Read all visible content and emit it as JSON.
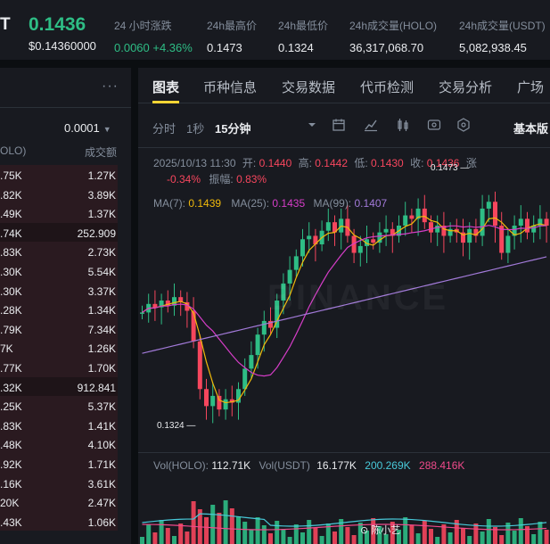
{
  "ticker": {
    "symbol": "T",
    "price": "0.1436",
    "price_usd": "$0.14360000",
    "stats": [
      {
        "label": "24 小时涨跌",
        "value": "0.0060 +4.36%",
        "green": true
      },
      {
        "label": "24h最高价",
        "value": "0.1473",
        "green": false
      },
      {
        "label": "24h最低价",
        "value": "0.1324",
        "green": false
      },
      {
        "label": "24h成交量(HOLO)",
        "value": "36,317,068.70",
        "green": false
      },
      {
        "label": "24h成交量(USDT)",
        "value": "5,082,938.45",
        "green": false
      }
    ]
  },
  "book": {
    "more": "···",
    "precision": "0.0001",
    "header_left": "OLO)",
    "header_right": "成交额",
    "rows": [
      {
        "a": ".75K",
        "b": "1.27K"
      },
      {
        "a": ".82K",
        "b": "3.89K"
      },
      {
        "a": ".49K",
        "b": "1.37K"
      },
      {
        "a": ".74K",
        "b": "252.909"
      },
      {
        "a": ".83K",
        "b": "2.73K"
      },
      {
        "a": ".30K",
        "b": "5.54K"
      },
      {
        "a": ".30K",
        "b": "3.37K"
      },
      {
        "a": ".28K",
        "b": "1.34K"
      },
      {
        "a": ".79K",
        "b": "7.34K"
      },
      {
        "a": "7K",
        "b": "1.26K"
      },
      {
        "a": ".77K",
        "b": "1.70K"
      },
      {
        "a": ".32K",
        "b": "912.841"
      },
      {
        "a": ".25K",
        "b": "5.37K"
      },
      {
        "a": ".83K",
        "b": "1.41K"
      },
      {
        "a": ".48K",
        "b": "4.10K"
      },
      {
        "a": ".92K",
        "b": "1.71K"
      },
      {
        "a": ".16K",
        "b": "3.61K"
      },
      {
        "a": "20K",
        "b": "2.47K"
      },
      {
        "a": ".43K",
        "b": "1.06K"
      }
    ]
  },
  "tabs": [
    "图表",
    "币种信息",
    "交易数据",
    "代币检测",
    "交易分析",
    "广场"
  ],
  "toolbar": {
    "time": "分时",
    "sec": "1秒",
    "interval": "15分钟",
    "view": "基本版"
  },
  "ohlc": {
    "time": "2025/10/13 11:30",
    "open_label": "开:",
    "open": "0.1440",
    "high_label": "高:",
    "high": "0.1442",
    "low_label": "低:",
    "low": "0.1430",
    "close_label": "收:",
    "close": "0.1436",
    "change_label": "涨",
    "change": "-0.34%",
    "amp_label": "振幅:",
    "amp": "0.83%"
  },
  "ma": {
    "ma7_label": "MA(7):",
    "ma7": "0.1439",
    "ma25_label": "MA(25):",
    "ma25": "0.1435",
    "ma99_label": "MA(99):",
    "ma99": "0.1407"
  },
  "volume": {
    "holo_label": "Vol(HOLO):",
    "holo": "112.71K",
    "usdt_label": "Vol(USDT)",
    "usdt": "16.177K",
    "v2": "200.269K",
    "v3": "288.416K"
  },
  "annotations": {
    "high": "0.1473",
    "low": "0.1324"
  },
  "watermark": "BINANCE",
  "credit": "陈小艺",
  "colors": {
    "up": "#2ebd85",
    "down": "#f6465d",
    "ma7": "#f0b90b",
    "ma25": "#d63dc8",
    "ma99": "#a27ad9",
    "accent": "#fcd535"
  }
}
